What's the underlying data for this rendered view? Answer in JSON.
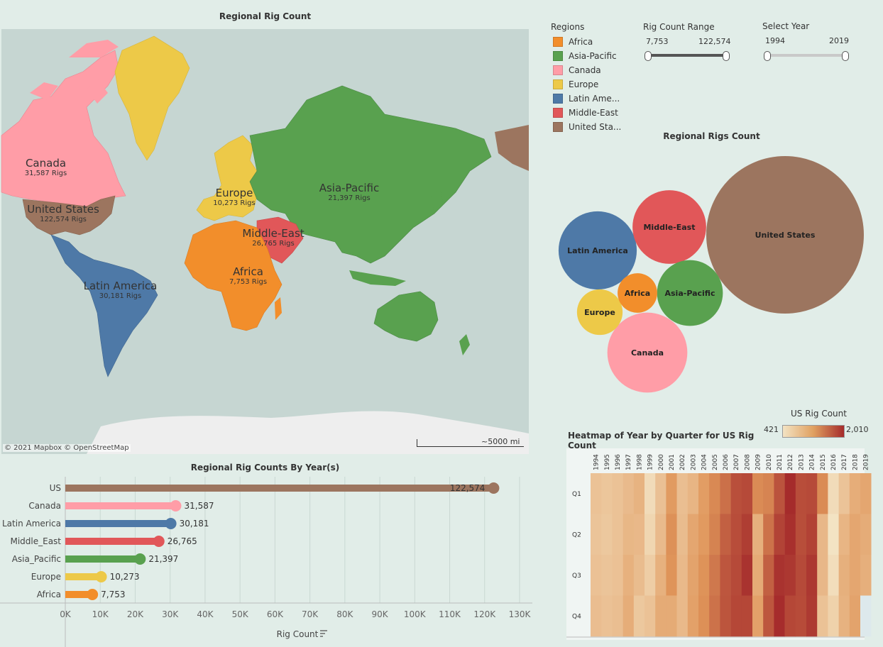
{
  "map": {
    "title": "Regional Rig Count",
    "attribution": "© 2021 Mapbox  © OpenStreetMap",
    "scale": "~5000 mi",
    "labels": [
      {
        "name": "Canada",
        "rigs": "31,587 Rigs"
      },
      {
        "name": "United States",
        "rigs": "122,574 Rigs"
      },
      {
        "name": "Europe",
        "rigs": "10,273 Rigs"
      },
      {
        "name": "Asia-Pacific",
        "rigs": "21,397 Rigs"
      },
      {
        "name": "Middle-East",
        "rigs": "26,765 Rigs"
      },
      {
        "name": "Africa",
        "rigs": "7,753 Rigs"
      },
      {
        "name": "Latin America",
        "rigs": "30,181 Rigs"
      }
    ]
  },
  "legend": {
    "title": "Regions",
    "items": [
      {
        "label": "Africa",
        "color": "#f28e2b"
      },
      {
        "label": "Asia-Pacific",
        "color": "#59a14f"
      },
      {
        "label": "Canada",
        "color": "#ff9da7"
      },
      {
        "label": "Europe",
        "color": "#edc948"
      },
      {
        "label": "Latin Ame...",
        "color": "#4e79a7"
      },
      {
        "label": "Middle-East",
        "color": "#e15759"
      },
      {
        "label": "United Sta...",
        "color": "#9c755f"
      }
    ]
  },
  "filters": {
    "rig_range": {
      "title": "Rig Count Range",
      "min": "7,753",
      "max": "122,574"
    },
    "year": {
      "title": "Select Year",
      "min": "1994",
      "max": "2019"
    }
  },
  "chart_data": [
    {
      "type": "bubble",
      "title": "Regional Rigs Count",
      "bubbles": [
        {
          "label": "United States",
          "value": 122574,
          "color": "#9c755f"
        },
        {
          "label": "Canada",
          "value": 31587,
          "color": "#ff9da7"
        },
        {
          "label": "Latin America",
          "value": 30181,
          "color": "#4e79a7"
        },
        {
          "label": "Middle-East",
          "value": 26765,
          "color": "#e15759"
        },
        {
          "label": "Asia-Pacific",
          "value": 21397,
          "color": "#59a14f"
        },
        {
          "label": "Europe",
          "value": 10273,
          "color": "#edc948"
        },
        {
          "label": "Africa",
          "value": 7753,
          "color": "#f28e2b"
        }
      ]
    },
    {
      "type": "bar",
      "title": "Regional Rig Counts By Year(s)",
      "xlabel": "Rig Count",
      "xlim": [
        0,
        130000
      ],
      "xticks": [
        "0K",
        "10K",
        "20K",
        "30K",
        "40K",
        "50K",
        "60K",
        "70K",
        "80K",
        "90K",
        "100K",
        "110K",
        "120K",
        "130K"
      ],
      "categories": [
        "US",
        "Canada",
        "Latin America",
        "Middle_East",
        "Asia_Pacific",
        "Europe",
        "Africa"
      ],
      "values": [
        122574,
        31587,
        30181,
        26765,
        21397,
        10273,
        7753
      ],
      "value_labels": [
        "122,574",
        "31,587",
        "30,181",
        "26,765",
        "21,397",
        "10,273",
        "7,753"
      ],
      "colors": [
        "#9c755f",
        "#ff9da7",
        "#4e79a7",
        "#e15759",
        "#59a14f",
        "#edc948",
        "#f28e2b"
      ]
    },
    {
      "type": "heatmap",
      "title": "Heatmap of Year by Quarter for US Rig Count",
      "legend_title": "US Rig Count",
      "color_range": [
        421,
        2010
      ],
      "color_min_label": "421",
      "color_max_label": "2,010",
      "years": [
        "1994",
        "1995",
        "1996",
        "1997",
        "1998",
        "1999",
        "2000",
        "2001",
        "2002",
        "2003",
        "2004",
        "2005",
        "2006",
        "2007",
        "2008",
        "2009",
        "2010",
        "2011",
        "2012",
        "2013",
        "2014",
        "2015",
        "2016",
        "2017",
        "2018",
        "2019"
      ],
      "quarters": [
        "Q1",
        "Q2",
        "Q3",
        "Q4"
      ],
      "values": [
        [
          760,
          740,
          770,
          810
        ],
        [
          720,
          700,
          740,
          770
        ],
        [
          760,
          760,
          770,
          800
        ],
        [
          840,
          880,
          940,
          980
        ],
        [
          920,
          860,
          820,
          700
        ],
        [
          500,
          560,
          650,
          760
        ],
        [
          780,
          840,
          940,
          1000
        ],
        [
          1160,
          1250,
          1230,
          1000
        ],
        [
          800,
          820,
          850,
          850
        ],
        [
          900,
          1050,
          1080,
          1100
        ],
        [
          1140,
          1170,
          1240,
          1260
        ],
        [
          1310,
          1360,
          1440,
          1480
        ],
        [
          1500,
          1620,
          1690,
          1700
        ],
        [
          1740,
          1760,
          1780,
          1800
        ],
        [
          1780,
          1870,
          1950,
          1800
        ],
        [
          1300,
          950,
          1000,
          1100
        ],
        [
          1350,
          1480,
          1620,
          1690
        ],
        [
          1710,
          1830,
          1950,
          2000
        ],
        [
          2010,
          1970,
          1910,
          1800
        ],
        [
          1760,
          1750,
          1780,
          1770
        ],
        [
          1780,
          1840,
          1910,
          1900
        ],
        [
          1300,
          870,
          870,
          760
        ],
        [
          500,
          421,
          480,
          600
        ],
        [
          750,
          900,
          950,
          930
        ],
        [
          980,
          1050,
          1050,
          1080
        ],
        [
          1050,
          990,
          960,
          null
        ]
      ]
    }
  ]
}
